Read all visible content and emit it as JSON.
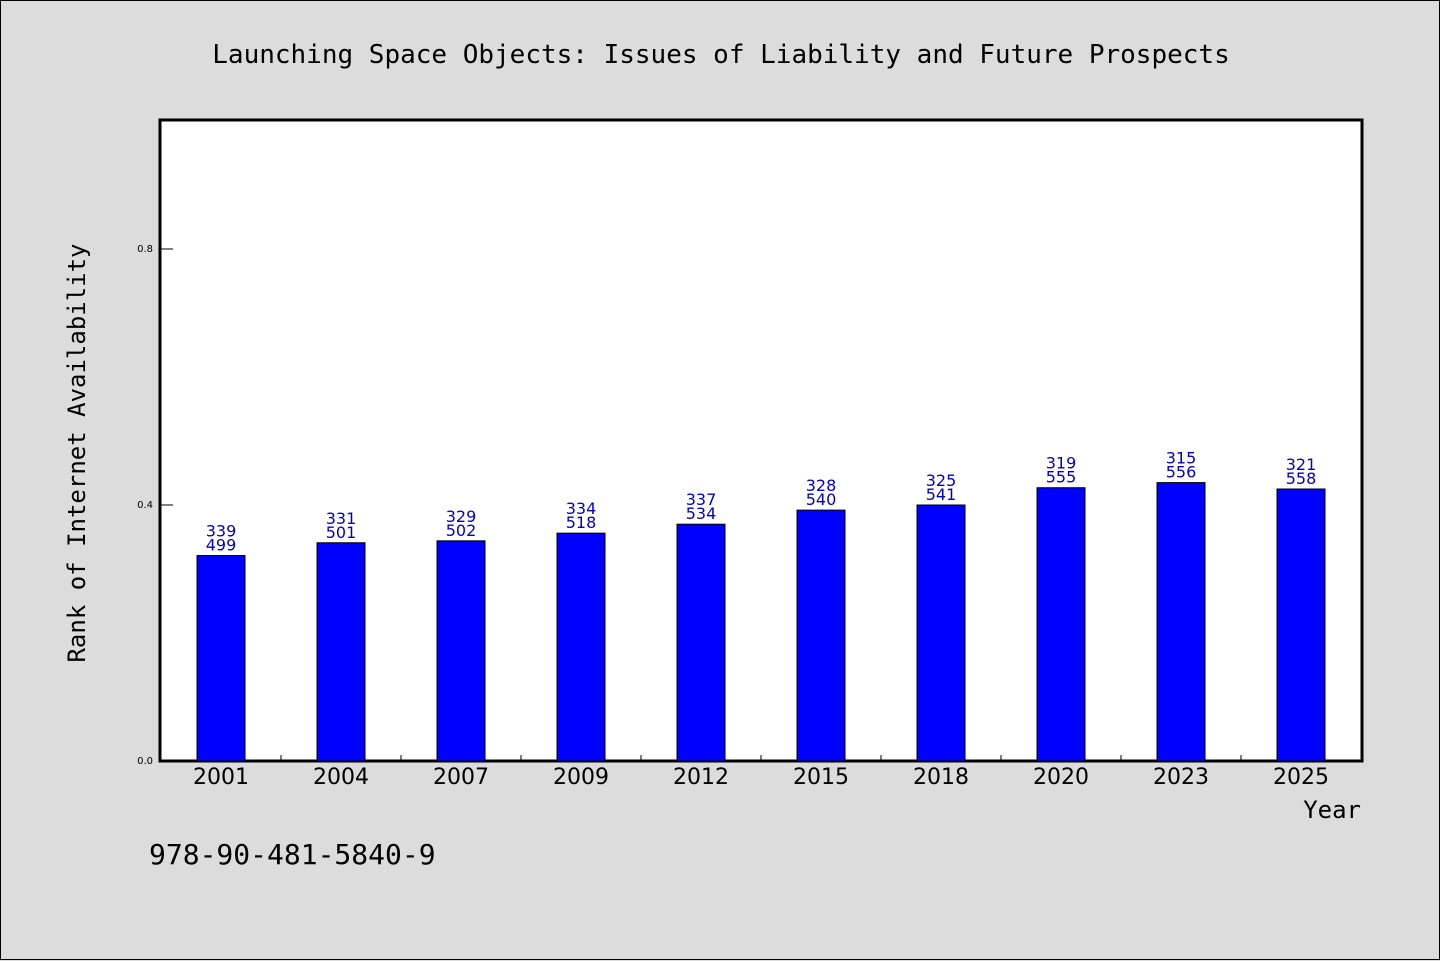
{
  "chart_data": {
    "type": "bar",
    "title": "Launching Space Objects: Issues of Liability and Future Prospects",
    "xlabel": "Year",
    "ylabel": "Rank of Internet Availability",
    "categories": [
      "2001",
      "2004",
      "2007",
      "2009",
      "2012",
      "2015",
      "2018",
      "2020",
      "2023",
      "2025"
    ],
    "values": [
      0.321,
      0.341,
      0.344,
      0.356,
      0.37,
      0.392,
      0.4,
      0.427,
      0.435,
      0.425
    ],
    "bar_labels_top": [
      "339",
      "331",
      "329",
      "334",
      "337",
      "328",
      "325",
      "319",
      "315",
      "321"
    ],
    "bar_labels_bottom": [
      "499",
      "501",
      "502",
      "518",
      "534",
      "540",
      "541",
      "555",
      "556",
      "558"
    ],
    "ylim": [
      0.0,
      1.0
    ],
    "yticks": [
      0.0,
      0.4,
      0.8
    ],
    "ytick_labels": [
      "0.0",
      "0.4",
      "0.8"
    ],
    "bar_color": "#0000ff",
    "label_color": "#0000cc",
    "grid": false,
    "legend": "none"
  },
  "footer": {
    "isbn": "978-90-481-5840-9"
  }
}
